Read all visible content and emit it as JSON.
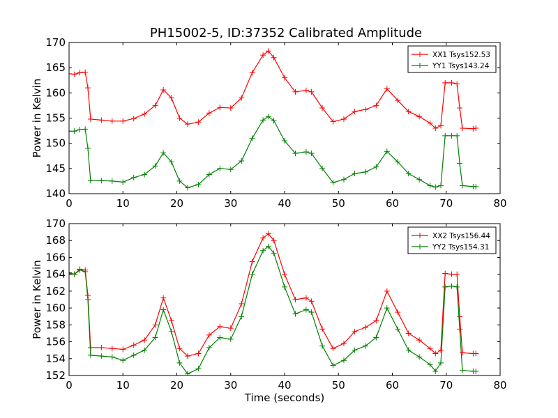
{
  "figure": {
    "title": "PH15002-5, ID:37352 Calibrated Amplitude"
  },
  "chart_data": [
    {
      "type": "line",
      "title": "PH15002-5, ID:37352 Calibrated Amplitude",
      "xlabel": "",
      "ylabel": "Power in Kelvin",
      "xlim": [
        0,
        80
      ],
      "ylim": [
        140,
        170
      ],
      "xticks": [
        0,
        10,
        20,
        30,
        40,
        50,
        60,
        70,
        80
      ],
      "yticks": [
        140,
        145,
        150,
        155,
        160,
        165,
        170
      ],
      "grid": false,
      "legend_position": "top-right",
      "marker": "+",
      "series": [
        {
          "name": "XX1 Tsys152.53",
          "color": "#ff0000",
          "points": [
            [
              0,
              163.8
            ],
            [
              1,
              163.7
            ],
            [
              2,
              164.0
            ],
            [
              3,
              164.1
            ],
            [
              3.5,
              161
            ],
            [
              4,
              154.8
            ],
            [
              6,
              154.6
            ],
            [
              8,
              154.4
            ],
            [
              10,
              154.4
            ],
            [
              12,
              154.9
            ],
            [
              14,
              155.8
            ],
            [
              16,
              157.5
            ],
            [
              17.5,
              160.6
            ],
            [
              19,
              159
            ],
            [
              20.5,
              155
            ],
            [
              22,
              153.8
            ],
            [
              24,
              154.2
            ],
            [
              26,
              156
            ],
            [
              28,
              157.1
            ],
            [
              30,
              157
            ],
            [
              32,
              159
            ],
            [
              34,
              164
            ],
            [
              36,
              167.5
            ],
            [
              37,
              168.3
            ],
            [
              38,
              167
            ],
            [
              40,
              163
            ],
            [
              42,
              160.2
            ],
            [
              44,
              160.5
            ],
            [
              45,
              160.2
            ],
            [
              47,
              157
            ],
            [
              49,
              154.3
            ],
            [
              51,
              154.8
            ],
            [
              53,
              156.3
            ],
            [
              55,
              156.7
            ],
            [
              57,
              157.5
            ],
            [
              59,
              160.8
            ],
            [
              61,
              158.5
            ],
            [
              63,
              156.3
            ],
            [
              65,
              155.3
            ],
            [
              67,
              154
            ],
            [
              68,
              153
            ],
            [
              69,
              153.5
            ],
            [
              69.8,
              162
            ],
            [
              71,
              162
            ],
            [
              72,
              161.8
            ],
            [
              72.5,
              157
            ],
            [
              73,
              153
            ],
            [
              75,
              152.9
            ],
            [
              75.5,
              153
            ]
          ]
        },
        {
          "name": "YY1 Tsys143.24",
          "color": "#008000",
          "points": [
            [
              0,
              152.4
            ],
            [
              1,
              152.4
            ],
            [
              2,
              152.7
            ],
            [
              3,
              152.8
            ],
            [
              3.5,
              149
            ],
            [
              4,
              142.6
            ],
            [
              6,
              142.6
            ],
            [
              8,
              142.5
            ],
            [
              10,
              142.3
            ],
            [
              12,
              143.2
            ],
            [
              14,
              143.8
            ],
            [
              16,
              145.5
            ],
            [
              17.5,
              148.1
            ],
            [
              19,
              146.3
            ],
            [
              20.5,
              142.5
            ],
            [
              22,
              141.2
            ],
            [
              24,
              141.8
            ],
            [
              26,
              143.8
            ],
            [
              28,
              145
            ],
            [
              30,
              144.8
            ],
            [
              32,
              146.5
            ],
            [
              34,
              151
            ],
            [
              36,
              154.6
            ],
            [
              37,
              155.3
            ],
            [
              38,
              154.5
            ],
            [
              40,
              150.5
            ],
            [
              42,
              148
            ],
            [
              44,
              148.3
            ],
            [
              45,
              148
            ],
            [
              47,
              145
            ],
            [
              49,
              142.2
            ],
            [
              51,
              142.8
            ],
            [
              53,
              144
            ],
            [
              55,
              144.3
            ],
            [
              57,
              145.3
            ],
            [
              59,
              148.4
            ],
            [
              61,
              146.3
            ],
            [
              63,
              144
            ],
            [
              65,
              142.8
            ],
            [
              67,
              141.6
            ],
            [
              68,
              141.3
            ],
            [
              69,
              141.6
            ],
            [
              69.8,
              151.5
            ],
            [
              71,
              151.5
            ],
            [
              72,
              151.5
            ],
            [
              72.5,
              146
            ],
            [
              73,
              141.6
            ],
            [
              75,
              141.4
            ],
            [
              75.5,
              141.4
            ]
          ]
        }
      ]
    },
    {
      "type": "line",
      "title": "",
      "xlabel": "Time (seconds)",
      "ylabel": "Power in Kelvin",
      "xlim": [
        0,
        80
      ],
      "ylim": [
        152,
        170
      ],
      "xticks": [
        0,
        10,
        20,
        30,
        40,
        50,
        60,
        70,
        80
      ],
      "yticks": [
        152,
        154,
        156,
        158,
        160,
        162,
        164,
        166,
        168,
        170
      ],
      "grid": false,
      "legend_position": "top-right",
      "marker": "+",
      "series": [
        {
          "name": "XX2 Tsys156.44",
          "color": "#ff0000",
          "points": [
            [
              0,
              164.1
            ],
            [
              1,
              164
            ],
            [
              2,
              164.6
            ],
            [
              3,
              164.5
            ],
            [
              3.5,
              161.5
            ],
            [
              4,
              155.3
            ],
            [
              6,
              155.3
            ],
            [
              8,
              155.2
            ],
            [
              10,
              155.1
            ],
            [
              12,
              155.6
            ],
            [
              14,
              156.2
            ],
            [
              16,
              158
            ],
            [
              17.5,
              161.2
            ],
            [
              19,
              158.5
            ],
            [
              20.5,
              155.2
            ],
            [
              22,
              154.3
            ],
            [
              24,
              154.6
            ],
            [
              26,
              156.8
            ],
            [
              28,
              157.8
            ],
            [
              30,
              157.6
            ],
            [
              32,
              160.5
            ],
            [
              34,
              165.5
            ],
            [
              36,
              168.3
            ],
            [
              37,
              168.8
            ],
            [
              38,
              168
            ],
            [
              40,
              164
            ],
            [
              42,
              161
            ],
            [
              44,
              161.2
            ],
            [
              45,
              160.8
            ],
            [
              47,
              157.5
            ],
            [
              49,
              155.2
            ],
            [
              51,
              155.8
            ],
            [
              53,
              157.2
            ],
            [
              55,
              157.7
            ],
            [
              57,
              158.5
            ],
            [
              59,
              162
            ],
            [
              61,
              159.5
            ],
            [
              63,
              157
            ],
            [
              65,
              156.2
            ],
            [
              67,
              155.2
            ],
            [
              68,
              154.6
            ],
            [
              69,
              155
            ],
            [
              69.8,
              164.1
            ],
            [
              71,
              164
            ],
            [
              72,
              164
            ],
            [
              72.5,
              159
            ],
            [
              73,
              154.7
            ],
            [
              75,
              154.6
            ],
            [
              75.5,
              154.6
            ]
          ]
        },
        {
          "name": "YY2 Tsys154.31",
          "color": "#008000",
          "points": [
            [
              0,
              164.2
            ],
            [
              1,
              164
            ],
            [
              2,
              164.5
            ],
            [
              3,
              164.3
            ],
            [
              3.5,
              161
            ],
            [
              4,
              154.4
            ],
            [
              6,
              154.3
            ],
            [
              8,
              154.2
            ],
            [
              10,
              153.8
            ],
            [
              12,
              154.4
            ],
            [
              14,
              155
            ],
            [
              16,
              156.5
            ],
            [
              17.5,
              159.8
            ],
            [
              19,
              157.2
            ],
            [
              20.5,
              153.5
            ],
            [
              22,
              152.2
            ],
            [
              24,
              152.8
            ],
            [
              26,
              155.3
            ],
            [
              28,
              156.5
            ],
            [
              30,
              156.3
            ],
            [
              32,
              159
            ],
            [
              34,
              164
            ],
            [
              36,
              166.8
            ],
            [
              37,
              167.3
            ],
            [
              38,
              166.5
            ],
            [
              40,
              162.5
            ],
            [
              42,
              159.3
            ],
            [
              44,
              159.8
            ],
            [
              45,
              159.5
            ],
            [
              47,
              155.5
            ],
            [
              49,
              153.2
            ],
            [
              51,
              153.8
            ],
            [
              53,
              155
            ],
            [
              55,
              155.5
            ],
            [
              57,
              156.5
            ],
            [
              59,
              160
            ],
            [
              61,
              157.5
            ],
            [
              63,
              155
            ],
            [
              65,
              154.2
            ],
            [
              67,
              153.3
            ],
            [
              68,
              152.5
            ],
            [
              69,
              153.5
            ],
            [
              69.8,
              162.5
            ],
            [
              71,
              162.6
            ],
            [
              72,
              162.5
            ],
            [
              72.5,
              157.5
            ],
            [
              73,
              152.6
            ],
            [
              75,
              152.5
            ],
            [
              75.5,
              152.5
            ]
          ]
        }
      ]
    }
  ]
}
